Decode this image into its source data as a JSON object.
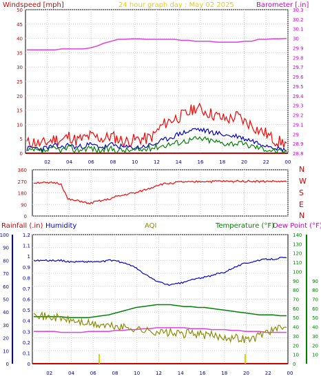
{
  "chart_data": [
    {
      "type": "line",
      "title": "24 hour graph day : May 02 2025",
      "ylabel": "Windspeed [mph]",
      "y2label": "Barometer [.in]",
      "x_ticks": [
        "02",
        "04",
        "06",
        "08",
        "10",
        "12",
        "14",
        "16",
        "18",
        "20",
        "22",
        "00"
      ],
      "ylim": [
        0,
        50
      ],
      "y_ticks": [
        0,
        5,
        10,
        15,
        20,
        25,
        30,
        35,
        40,
        45,
        50
      ],
      "y2lim": [
        28.8,
        30.3
      ],
      "y2_ticks": [
        "28.8",
        "28.9",
        "29",
        "29.1",
        "29.2",
        "29.3",
        "29.4",
        "29.5",
        "29.6",
        "29.7",
        "29.8",
        "29.9",
        "30",
        "30.1",
        "30.2",
        "30.3"
      ],
      "grid": true,
      "colors": {
        "gust": "#ff0000",
        "avg": "#0000cc",
        "low": "#008000",
        "barometer": "#e040e0",
        "title": "#e8d000",
        "axis_left": "#cc0000",
        "axis_right": "#cc00cc"
      },
      "series": [
        {
          "name": "gust",
          "values": [
            3.5,
            4,
            3,
            4,
            5,
            4.5,
            6,
            4.5,
            5,
            6,
            5.5,
            5,
            6,
            5,
            4,
            4.5,
            5,
            5,
            6,
            9,
            11,
            12,
            13,
            14,
            16,
            15,
            14,
            13,
            12,
            12,
            13,
            11,
            10,
            8,
            7,
            5,
            4,
            3.5
          ]
        },
        {
          "name": "avg",
          "values": [
            1.5,
            2,
            1.5,
            2,
            2.5,
            2,
            3,
            2,
            2.5,
            3,
            2.5,
            2,
            3,
            2.5,
            2,
            2,
            2,
            2.5,
            3,
            4,
            5,
            6,
            7,
            7.5,
            8.5,
            8,
            7.5,
            7,
            6.5,
            6,
            6,
            5,
            4.5,
            3.5,
            3,
            2.5,
            1.5,
            1
          ]
        },
        {
          "name": "low",
          "values": [
            0.5,
            1,
            0.5,
            1,
            1.5,
            1,
            2,
            1,
            1.5,
            2,
            1,
            1,
            1.5,
            1,
            1,
            1,
            1,
            1.5,
            2,
            2.5,
            3,
            3.5,
            4,
            4.5,
            5,
            5,
            4.5,
            4,
            3.5,
            3.5,
            3.5,
            3,
            2.5,
            2,
            1.5,
            1,
            0.5,
            0.5
          ]
        },
        {
          "name": "barometer",
          "values": [
            29.88,
            29.88,
            29.88,
            29.88,
            29.88,
            29.89,
            29.89,
            29.89,
            29.89,
            29.9,
            29.92,
            29.95,
            29.97,
            29.99,
            29.99,
            29.995,
            29.995,
            29.99,
            29.99,
            29.99,
            29.99,
            29.99,
            29.98,
            29.98,
            29.97,
            29.97,
            29.97,
            29.96,
            29.96,
            29.96,
            29.96,
            29.97,
            29.97,
            29.99,
            29.99,
            29.995,
            29.995,
            30.0
          ]
        }
      ]
    },
    {
      "type": "line",
      "ylim": [
        0,
        360
      ],
      "y_ticks": [
        0,
        90,
        180,
        270,
        360
      ],
      "y_tick_labels": [
        "0",
        "90",
        "180",
        "270",
        "360"
      ],
      "compass": [
        "N",
        "W",
        "S",
        "E",
        "N"
      ],
      "x_ticks": [
        "02",
        "04",
        "06",
        "08",
        "10",
        "12",
        "14",
        "16",
        "18",
        "20",
        "22",
        "00"
      ],
      "colors": {
        "direction": "#ff0000",
        "axis_left": "#cc0000",
        "compass": "#cc0000"
      },
      "series": [
        {
          "name": "direction",
          "values": [
            258,
            262,
            255,
            260,
            250,
            130,
            120,
            115,
            95,
            110,
            120,
            130,
            150,
            160,
            175,
            180,
            200,
            215,
            240,
            250,
            255,
            262,
            265,
            262,
            268,
            270,
            268,
            272,
            270,
            268,
            275,
            270,
            272,
            268,
            270,
            270,
            268,
            266
          ]
        }
      ]
    },
    {
      "type": "line",
      "labels": {
        "rainfall": "Rainfall (.in)",
        "humidity": "Humidity",
        "aqi": "AQI",
        "temperature": "Temperature (°F)",
        "dewpoint": "Dew Point (°F)"
      },
      "x_ticks": [
        "02",
        "04",
        "06",
        "08",
        "10",
        "12",
        "14",
        "16",
        "18",
        "20",
        "22",
        "00"
      ],
      "humidity_ticks": [
        "0",
        "10",
        "20",
        "30",
        "40",
        "50",
        "60",
        "70",
        "80",
        "90",
        "100"
      ],
      "rain_ticks": [
        "0",
        "0.1",
        "0.2",
        "0.3",
        "0.4",
        "0.5",
        "0.6",
        "0.7",
        "0.8",
        "0.9",
        "1",
        "1.1",
        "1.2"
      ],
      "temp_ticks": [
        "0",
        "10",
        "20",
        "30",
        "40",
        "50",
        "60",
        "70",
        "80",
        "90",
        "100",
        "110",
        "120",
        "130",
        "140"
      ],
      "dew_ticks": [
        "10",
        "20",
        "30",
        "40",
        "50",
        "60",
        "70",
        "80",
        "90"
      ],
      "colors": {
        "rainfall": "#cc0000",
        "humidity": "#0000cc",
        "aqi": "#8b8b00",
        "temperature": "#008000",
        "dewpoint": "#e040e0",
        "rain_axis": "#0000cc",
        "temp_axis": "#008000"
      },
      "series": [
        {
          "name": "Humidity",
          "values": [
            80,
            80,
            80,
            80,
            80,
            79,
            79,
            79,
            79,
            79,
            79,
            80,
            80,
            78,
            77,
            74,
            70,
            67,
            64,
            62,
            61,
            62,
            63,
            65,
            66,
            67,
            68,
            70,
            71,
            74,
            76,
            78,
            79,
            80,
            81,
            81,
            82,
            82
          ]
        },
        {
          "name": "AQI",
          "values": [
            42,
            37,
            36,
            36,
            35,
            34,
            33,
            32,
            31,
            30,
            30,
            29,
            29,
            28,
            28,
            27,
            26,
            25,
            25,
            24,
            24,
            23,
            23,
            24,
            23,
            22,
            22,
            21,
            21,
            20,
            20,
            19,
            19,
            22,
            25,
            26,
            27,
            28
          ]
        },
        {
          "name": "Temperature",
          "values": [
            51,
            51,
            51,
            51,
            51,
            50,
            50,
            50,
            50,
            51,
            52,
            53,
            55,
            57,
            59,
            61,
            62,
            63,
            64,
            64,
            64,
            63,
            62,
            62,
            61,
            61,
            60,
            59,
            58,
            57,
            56,
            55,
            54,
            53,
            53,
            53,
            52,
            52
          ]
        },
        {
          "name": "Dew Point",
          "values": [
            35,
            35,
            35,
            35,
            34,
            34,
            34,
            34,
            35,
            35,
            35,
            35,
            36,
            36,
            37,
            37,
            38,
            38,
            39,
            39,
            39,
            39,
            39,
            38,
            38,
            38,
            37,
            37,
            37,
            36,
            36,
            35,
            35,
            35,
            34,
            34,
            34,
            34
          ]
        }
      ]
    }
  ]
}
